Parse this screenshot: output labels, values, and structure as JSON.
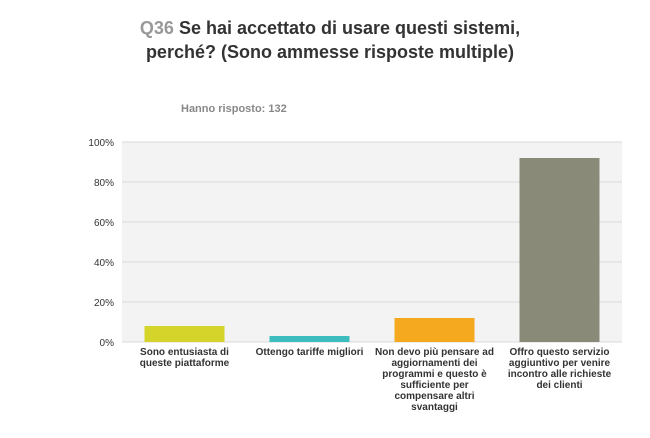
{
  "question": {
    "number": "Q36",
    "text": "Se hai accettato di usare questi sistemi, perché? (Sono ammesse risposte multiple)",
    "answered": "Hanno risposto: 132"
  },
  "colors": {
    "background": "#f3f3f3",
    "grid": "#d8d8d8"
  },
  "chart_data": {
    "type": "bar",
    "categories": [
      "Sono entusiasta di queste piattaforme",
      "Ottengo tariffe migliori",
      "Non devo più pensare ad aggiornamenti dei programmi e questo è sufficiente per compensare altri svantaggi",
      "Offro questo servizio aggiuntivo per venire incontro alle richieste dei clienti"
    ],
    "values": [
      8,
      3,
      12,
      92
    ],
    "colors": [
      "#d4d42a",
      "#3dbdbd",
      "#f5a91f",
      "#8a8a78"
    ],
    "yticks": [
      "0%",
      "20%",
      "40%",
      "60%",
      "80%",
      "100%"
    ],
    "ylim": [
      0,
      100
    ],
    "grid": true
  }
}
